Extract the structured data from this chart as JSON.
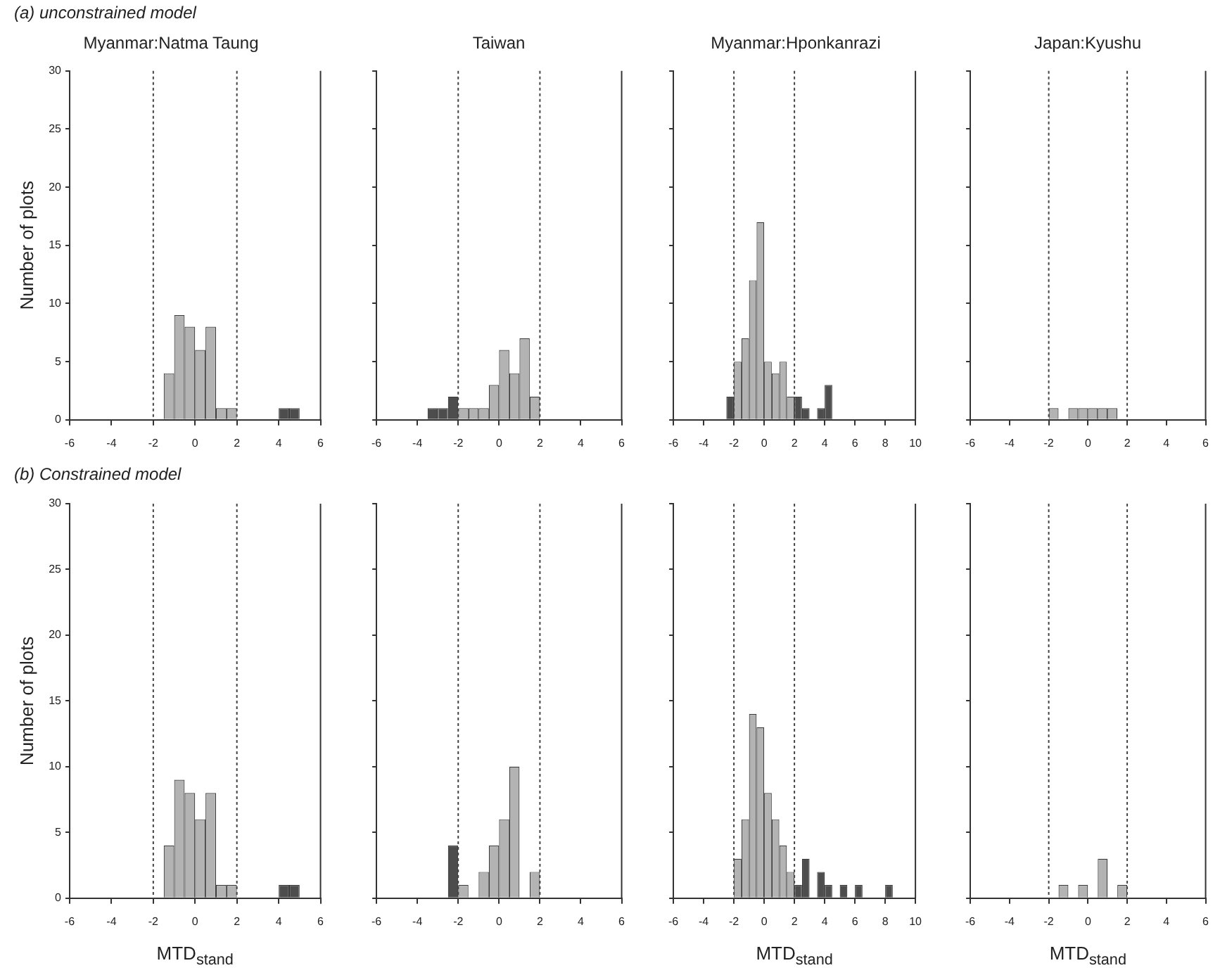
{
  "chart_data": [
    {
      "type": "histogram",
      "title": "Myanmar:Natma Taung",
      "ylabel": "Number of plots",
      "annotations": [
        "(a) unconstrained model"
      ],
      "bins": [
        -6,
        -5.5,
        -5,
        -4.5,
        -4,
        -3.5,
        -3,
        -2.5,
        -2,
        -1.5,
        -1,
        -0.5,
        0,
        0.5,
        1,
        1.5,
        2,
        2.5,
        3,
        3.5,
        4,
        4.5,
        5,
        5.5,
        6
      ],
      "values": [
        0,
        0,
        0,
        0,
        0,
        0,
        0,
        0,
        0,
        4,
        9,
        8,
        6,
        8,
        1,
        1,
        0,
        0,
        0,
        0,
        1,
        1,
        0,
        0
      ],
      "colors": [
        "#4d4d4d",
        "#4d4d4d",
        "#4d4d4d",
        "#4d4d4d",
        "#4d4d4d",
        "#4d4d4d",
        "#4d4d4d",
        "#4d4d4d",
        "#b3b3b3",
        "#b3b3b3",
        "#b3b3b3",
        "#b3b3b3",
        "#b3b3b3",
        "#b3b3b3",
        "#b3b3b3",
        "#b3b3b3",
        "#4d4d4d",
        "#4d4d4d",
        "#4d4d4d",
        "#4d4d4d",
        "#4d4d4d",
        "#4d4d4d",
        "#4d4d4d",
        "#4d4d4d"
      ],
      "xlim": [
        -6,
        6
      ],
      "xticks": [
        -6,
        -4,
        -2,
        0,
        2,
        4,
        6
      ],
      "ylim": [
        0,
        30
      ],
      "yticks": [
        0,
        5,
        10,
        15,
        20,
        25,
        30
      ],
      "ref_lines": [
        {
          "axis": "x",
          "value": -2,
          "line_style": "dotted"
        },
        {
          "axis": "x",
          "value": 2,
          "line_style": "dotted"
        }
      ]
    },
    {
      "type": "histogram",
      "title": "Taiwan",
      "bins": [
        -6,
        -5.5,
        -5,
        -4.5,
        -4,
        -3.5,
        -3,
        -2.5,
        -2,
        -1.5,
        -1,
        -0.5,
        0,
        0.5,
        1,
        1.5,
        2,
        2.5,
        3,
        3.5,
        4,
        4.5,
        5,
        5.5,
        6
      ],
      "values": [
        0,
        0,
        0,
        0,
        0,
        1,
        1,
        2,
        1,
        1,
        1,
        3,
        6,
        4,
        7,
        2,
        0,
        0,
        0,
        0,
        0,
        0,
        0,
        0
      ],
      "colors": [
        "#4d4d4d",
        "#4d4d4d",
        "#4d4d4d",
        "#4d4d4d",
        "#4d4d4d",
        "#4d4d4d",
        "#4d4d4d",
        "#4d4d4d",
        "#b3b3b3",
        "#b3b3b3",
        "#b3b3b3",
        "#b3b3b3",
        "#b3b3b3",
        "#b3b3b3",
        "#b3b3b3",
        "#b3b3b3",
        "#4d4d4d",
        "#4d4d4d",
        "#4d4d4d",
        "#4d4d4d",
        "#4d4d4d",
        "#4d4d4d",
        "#4d4d4d",
        "#4d4d4d"
      ],
      "xlim": [
        -6,
        6
      ],
      "xticks": [
        -6,
        -4,
        -2,
        0,
        2,
        4,
        6
      ],
      "ylim": [
        0,
        30
      ],
      "yticks": [
        0,
        5,
        10,
        15,
        20,
        25,
        30
      ],
      "tick_labels": "x",
      "ref_lines": [
        {
          "axis": "x",
          "value": -2,
          "line_style": "dotted"
        },
        {
          "axis": "x",
          "value": 2,
          "line_style": "dotted"
        }
      ]
    },
    {
      "type": "histogram",
      "title": "Myanmar:Hponkanrazi",
      "bins": [
        -6,
        -5.5,
        -5,
        -4.5,
        -4,
        -3.5,
        -3,
        -2.5,
        -2,
        -1.5,
        -1,
        -0.5,
        0,
        0.5,
        1,
        1.5,
        2,
        2.5,
        3,
        3.5,
        4,
        4.5,
        5,
        5.5,
        6,
        6.5,
        7,
        7.5,
        8,
        8.5,
        9,
        9.5,
        10
      ],
      "values": [
        0,
        0,
        0,
        0,
        0,
        0,
        0,
        2,
        5,
        7,
        12,
        17,
        5,
        4,
        5,
        2,
        2,
        1,
        0,
        1,
        3,
        0,
        0,
        0,
        0,
        0,
        0,
        0,
        0,
        0,
        0,
        0
      ],
      "colors": [
        "#4d4d4d",
        "#4d4d4d",
        "#4d4d4d",
        "#4d4d4d",
        "#4d4d4d",
        "#4d4d4d",
        "#4d4d4d",
        "#4d4d4d",
        "#b3b3b3",
        "#b3b3b3",
        "#b3b3b3",
        "#b3b3b3",
        "#b3b3b3",
        "#b3b3b3",
        "#b3b3b3",
        "#b3b3b3",
        "#4d4d4d",
        "#4d4d4d",
        "#4d4d4d",
        "#4d4d4d",
        "#4d4d4d",
        "#4d4d4d",
        "#4d4d4d",
        "#4d4d4d",
        "#4d4d4d",
        "#4d4d4d",
        "#4d4d4d",
        "#4d4d4d",
        "#4d4d4d",
        "#4d4d4d",
        "#4d4d4d",
        "#4d4d4d"
      ],
      "xlim": [
        -6,
        10
      ],
      "xticks": [
        -6,
        -4,
        -2,
        0,
        2,
        4,
        6,
        8,
        10
      ],
      "ylim": [
        0,
        30
      ],
      "yticks": [
        0,
        5,
        10,
        15,
        20,
        25,
        30
      ],
      "tick_labels": "x",
      "ref_lines": [
        {
          "axis": "x",
          "value": -2,
          "line_style": "dotted"
        },
        {
          "axis": "x",
          "value": 2,
          "line_style": "dotted"
        }
      ]
    },
    {
      "type": "histogram",
      "title": "Japan:Kyushu",
      "bins": [
        -6,
        -5.5,
        -5,
        -4.5,
        -4,
        -3.5,
        -3,
        -2.5,
        -2,
        -1.5,
        -1,
        -0.5,
        0,
        0.5,
        1,
        1.5,
        2,
        2.5,
        3,
        3.5,
        4,
        4.5,
        5,
        5.5,
        6
      ],
      "values": [
        0,
        0,
        0,
        0,
        0,
        0,
        0,
        0,
        1,
        0,
        1,
        1,
        1,
        1,
        1,
        0,
        0,
        0,
        0,
        0,
        0,
        0,
        0,
        0
      ],
      "colors": [
        "#4d4d4d",
        "#4d4d4d",
        "#4d4d4d",
        "#4d4d4d",
        "#4d4d4d",
        "#4d4d4d",
        "#4d4d4d",
        "#4d4d4d",
        "#b3b3b3",
        "#b3b3b3",
        "#b3b3b3",
        "#b3b3b3",
        "#b3b3b3",
        "#b3b3b3",
        "#b3b3b3",
        "#b3b3b3",
        "#4d4d4d",
        "#4d4d4d",
        "#4d4d4d",
        "#4d4d4d",
        "#4d4d4d",
        "#4d4d4d",
        "#4d4d4d",
        "#4d4d4d"
      ],
      "xlim": [
        -6,
        6
      ],
      "xticks": [
        -6,
        -4,
        -2,
        0,
        2,
        4,
        6
      ],
      "ylim": [
        0,
        30
      ],
      "yticks": [
        0,
        5,
        10,
        15,
        20,
        25,
        30
      ],
      "tick_labels": "x",
      "ref_lines": [
        {
          "axis": "x",
          "value": -2,
          "line_style": "dotted"
        },
        {
          "axis": "x",
          "value": 2,
          "line_style": "dotted"
        }
      ]
    },
    {
      "type": "histogram",
      "xlabel": "MTD$_{stand}$",
      "ylabel": "Number of plots",
      "annotations": [
        "(b) Constrained model"
      ],
      "bins": [
        -6,
        -5.5,
        -5,
        -4.5,
        -4,
        -3.5,
        -3,
        -2.5,
        -2,
        -1.5,
        -1,
        -0.5,
        0,
        0.5,
        1,
        1.5,
        2,
        2.5,
        3,
        3.5,
        4,
        4.5,
        5,
        5.5,
        6
      ],
      "values": [
        0,
        0,
        0,
        0,
        0,
        0,
        0,
        0,
        0,
        4,
        9,
        8,
        6,
        8,
        1,
        1,
        0,
        0,
        0,
        0,
        1,
        1,
        0,
        0
      ],
      "colors": [
        "#4d4d4d",
        "#4d4d4d",
        "#4d4d4d",
        "#4d4d4d",
        "#4d4d4d",
        "#4d4d4d",
        "#4d4d4d",
        "#4d4d4d",
        "#b3b3b3",
        "#b3b3b3",
        "#b3b3b3",
        "#b3b3b3",
        "#b3b3b3",
        "#b3b3b3",
        "#b3b3b3",
        "#b3b3b3",
        "#4d4d4d",
        "#4d4d4d",
        "#4d4d4d",
        "#4d4d4d",
        "#4d4d4d",
        "#4d4d4d",
        "#4d4d4d",
        "#4d4d4d"
      ],
      "xlim": [
        -6,
        6
      ],
      "xticks": [
        -6,
        -4,
        -2,
        0,
        2,
        4,
        6
      ],
      "ylim": [
        0,
        30
      ],
      "yticks": [
        0,
        5,
        10,
        15,
        20,
        25,
        30
      ],
      "ref_lines": [
        {
          "axis": "x",
          "value": -2,
          "line_style": "dotted"
        },
        {
          "axis": "x",
          "value": 2,
          "line_style": "dotted"
        }
      ]
    },
    {
      "type": "histogram",
      "bins": [
        -6,
        -5.5,
        -5,
        -4.5,
        -4,
        -3.5,
        -3,
        -2.5,
        -2,
        -1.5,
        -1,
        -0.5,
        0,
        0.5,
        1,
        1.5,
        2,
        2.5,
        3,
        3.5,
        4,
        4.5,
        5,
        5.5,
        6
      ],
      "values": [
        0,
        0,
        0,
        0,
        0,
        0,
        0,
        4,
        1,
        0,
        2,
        4,
        6,
        10,
        0,
        2,
        0,
        0,
        0,
        0,
        0,
        0,
        0,
        0
      ],
      "colors": [
        "#4d4d4d",
        "#4d4d4d",
        "#4d4d4d",
        "#4d4d4d",
        "#4d4d4d",
        "#4d4d4d",
        "#4d4d4d",
        "#4d4d4d",
        "#b3b3b3",
        "#b3b3b3",
        "#b3b3b3",
        "#b3b3b3",
        "#b3b3b3",
        "#b3b3b3",
        "#b3b3b3",
        "#b3b3b3",
        "#4d4d4d",
        "#4d4d4d",
        "#4d4d4d",
        "#4d4d4d",
        "#4d4d4d",
        "#4d4d4d",
        "#4d4d4d",
        "#4d4d4d"
      ],
      "xlim": [
        -6,
        6
      ],
      "xticks": [
        -6,
        -4,
        -2,
        0,
        2,
        4,
        6
      ],
      "ylim": [
        0,
        30
      ],
      "yticks": [
        0,
        5,
        10,
        15,
        20,
        25,
        30
      ],
      "tick_labels": "x",
      "ref_lines": [
        {
          "axis": "x",
          "value": -2,
          "line_style": "dotted"
        },
        {
          "axis": "x",
          "value": 2,
          "line_style": "dotted"
        }
      ]
    },
    {
      "type": "histogram",
      "xlabel": "MTD$_{stand}$",
      "bins": [
        -6,
        -5.5,
        -5,
        -4.5,
        -4,
        -3.5,
        -3,
        -2.5,
        -2,
        -1.5,
        -1,
        -0.5,
        0,
        0.5,
        1,
        1.5,
        2,
        2.5,
        3,
        3.5,
        4,
        4.5,
        5,
        5.5,
        6,
        6.5,
        7,
        7.5,
        8,
        8.5,
        9,
        9.5,
        10
      ],
      "values": [
        0,
        0,
        0,
        0,
        0,
        0,
        0,
        0,
        3,
        6,
        14,
        13,
        8,
        6,
        4,
        2,
        1,
        3,
        0,
        2,
        1,
        0,
        1,
        0,
        1,
        0,
        0,
        0,
        1,
        0,
        0,
        0
      ],
      "colors": [
        "#4d4d4d",
        "#4d4d4d",
        "#4d4d4d",
        "#4d4d4d",
        "#4d4d4d",
        "#4d4d4d",
        "#4d4d4d",
        "#4d4d4d",
        "#b3b3b3",
        "#b3b3b3",
        "#b3b3b3",
        "#b3b3b3",
        "#b3b3b3",
        "#b3b3b3",
        "#b3b3b3",
        "#b3b3b3",
        "#4d4d4d",
        "#4d4d4d",
        "#4d4d4d",
        "#4d4d4d",
        "#4d4d4d",
        "#4d4d4d",
        "#4d4d4d",
        "#4d4d4d",
        "#4d4d4d",
        "#4d4d4d",
        "#4d4d4d",
        "#4d4d4d",
        "#4d4d4d",
        "#4d4d4d",
        "#4d4d4d",
        "#4d4d4d"
      ],
      "xlim": [
        -6,
        10
      ],
      "xticks": [
        -6,
        -4,
        -2,
        0,
        2,
        4,
        6,
        8,
        10
      ],
      "ylim": [
        0,
        30
      ],
      "yticks": [
        0,
        5,
        10,
        15,
        20,
        25,
        30
      ],
      "tick_labels": "x",
      "ref_lines": [
        {
          "axis": "x",
          "value": -2,
          "line_style": "dotted"
        },
        {
          "axis": "x",
          "value": 2,
          "line_style": "dotted"
        }
      ]
    },
    {
      "type": "histogram",
      "xlabel": "MTD$_{stand}$",
      "bins": [
        -6,
        -5.5,
        -5,
        -4.5,
        -4,
        -3.5,
        -3,
        -2.5,
        -2,
        -1.5,
        -1,
        -0.5,
        0,
        0.5,
        1,
        1.5,
        2,
        2.5,
        3,
        3.5,
        4,
        4.5,
        5,
        5.5,
        6
      ],
      "values": [
        0,
        0,
        0,
        0,
        0,
        0,
        0,
        0,
        0,
        1,
        0,
        1,
        0,
        3,
        0,
        1,
        0,
        0,
        0,
        0,
        0,
        0,
        0,
        0
      ],
      "colors": [
        "#4d4d4d",
        "#4d4d4d",
        "#4d4d4d",
        "#4d4d4d",
        "#4d4d4d",
        "#4d4d4d",
        "#4d4d4d",
        "#4d4d4d",
        "#b3b3b3",
        "#b3b3b3",
        "#b3b3b3",
        "#b3b3b3",
        "#b3b3b3",
        "#b3b3b3",
        "#b3b3b3",
        "#b3b3b3",
        "#4d4d4d",
        "#4d4d4d",
        "#4d4d4d",
        "#4d4d4d",
        "#4d4d4d",
        "#4d4d4d",
        "#4d4d4d",
        "#4d4d4d"
      ],
      "xlim": [
        -6,
        6
      ],
      "xticks": [
        -6,
        -4,
        -2,
        0,
        2,
        4,
        6
      ],
      "ylim": [
        0,
        30
      ],
      "yticks": [
        0,
        5,
        10,
        15,
        20,
        25,
        30
      ],
      "tick_labels": "x",
      "ref_lines": [
        {
          "axis": "x",
          "value": -2,
          "line_style": "dotted"
        },
        {
          "axis": "x",
          "value": 2,
          "line_style": "dotted"
        }
      ]
    }
  ]
}
